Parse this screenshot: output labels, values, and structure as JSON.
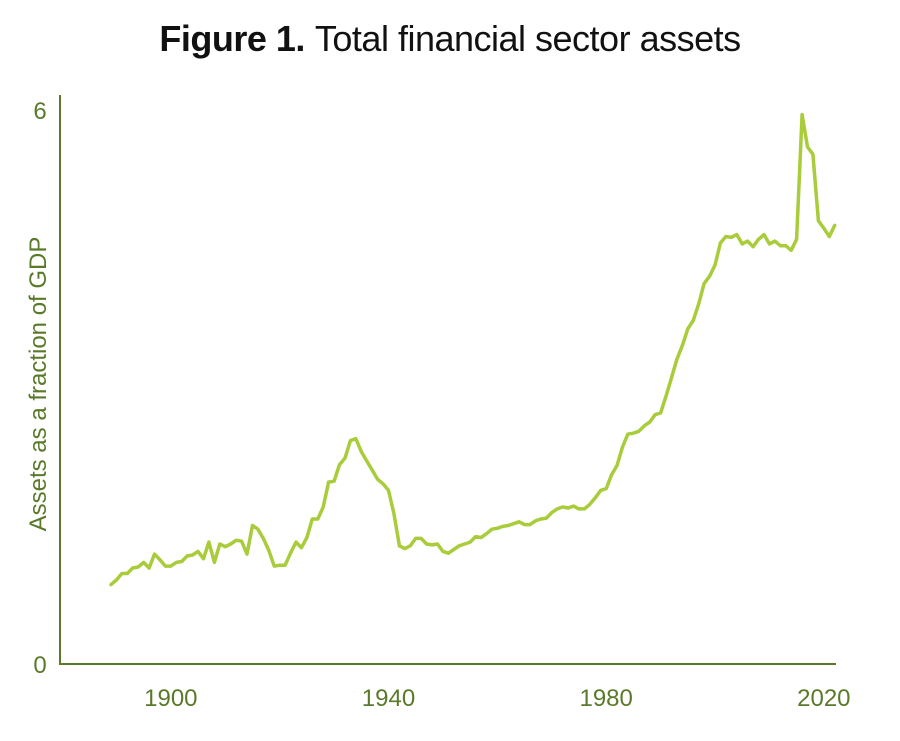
{
  "title": {
    "prefix": "Figure 1.",
    "text": "Total financial sector assets"
  },
  "colors": {
    "axis": "#5a7a2a",
    "text": "#5a7a2a",
    "line": "#a8cc3a",
    "title": "#111111"
  },
  "chart_data": {
    "type": "line",
    "title": "Total financial sector assets",
    "xlabel": "",
    "ylabel": "Assets as a fraction of GDP",
    "xlim": [
      1880,
      2030
    ],
    "ylim": [
      0,
      6
    ],
    "xticks": [
      1900,
      1940,
      1980,
      2020
    ],
    "yticks": [
      0,
      6
    ],
    "grid": false,
    "series": [
      {
        "name": "",
        "x": [
          1889,
          1890,
          1891,
          1892,
          1893,
          1894,
          1895,
          1896,
          1897,
          1898,
          1899,
          1900,
          1901,
          1902,
          1903,
          1904,
          1905,
          1906,
          1907,
          1908,
          1909,
          1910,
          1911,
          1912,
          1913,
          1914,
          1915,
          1916,
          1917,
          1918,
          1919,
          1920,
          1921,
          1922,
          1923,
          1924,
          1925,
          1926,
          1927,
          1928,
          1929,
          1930,
          1931,
          1932,
          1933,
          1934,
          1935,
          1936,
          1937,
          1938,
          1939,
          1940,
          1941,
          1942,
          1943,
          1944,
          1945,
          1946,
          1947,
          1948,
          1949,
          1950,
          1951,
          1952,
          1953,
          1954,
          1955,
          1956,
          1957,
          1958,
          1959,
          1960,
          1961,
          1962,
          1963,
          1964,
          1965,
          1966,
          1967,
          1968,
          1969,
          1970,
          1971,
          1972,
          1973,
          1974,
          1975,
          1976,
          1977,
          1978,
          1979,
          1980,
          1981,
          1982,
          1983,
          1984,
          1985,
          1986,
          1987,
          1988,
          1989,
          1990,
          1991,
          1992,
          1993,
          1994,
          1995,
          1996,
          1997,
          1998,
          1999,
          2000,
          2001,
          2002,
          2003,
          2004,
          2005,
          2006,
          2007,
          2008,
          2009,
          2010,
          2011,
          2012,
          2013,
          2014,
          2015,
          2016,
          2017,
          2018,
          2019,
          2020,
          2021,
          2022
        ],
        "y": [
          0.86,
          0.91,
          0.98,
          0.98,
          1.04,
          1.05,
          1.1,
          1.04,
          1.19,
          1.13,
          1.06,
          1.06,
          1.1,
          1.11,
          1.17,
          1.18,
          1.22,
          1.14,
          1.32,
          1.1,
          1.3,
          1.27,
          1.3,
          1.34,
          1.33,
          1.19,
          1.5,
          1.46,
          1.36,
          1.23,
          1.06,
          1.07,
          1.07,
          1.2,
          1.32,
          1.26,
          1.37,
          1.57,
          1.57,
          1.7,
          1.97,
          1.98,
          2.16,
          2.23,
          2.42,
          2.44,
          2.3,
          2.2,
          2.1,
          2.0,
          1.95,
          1.88,
          1.63,
          1.28,
          1.25,
          1.28,
          1.36,
          1.36,
          1.3,
          1.29,
          1.3,
          1.22,
          1.2,
          1.24,
          1.28,
          1.3,
          1.32,
          1.38,
          1.37,
          1.41,
          1.46,
          1.47,
          1.49,
          1.5,
          1.52,
          1.54,
          1.51,
          1.51,
          1.55,
          1.57,
          1.58,
          1.64,
          1.68,
          1.7,
          1.69,
          1.71,
          1.68,
          1.68,
          1.73,
          1.8,
          1.88,
          1.9,
          2.05,
          2.15,
          2.35,
          2.49,
          2.5,
          2.52,
          2.58,
          2.62,
          2.7,
          2.72,
          2.9,
          3.1,
          3.3,
          3.45,
          3.63,
          3.72,
          3.9,
          4.12,
          4.2,
          4.32,
          4.56,
          4.63,
          4.62,
          4.65,
          4.55,
          4.58,
          4.52,
          4.6,
          4.65,
          4.55,
          4.58,
          4.53,
          4.53,
          4.48,
          4.6,
          5.95,
          5.6,
          5.52,
          4.8,
          4.72,
          4.63,
          4.75
        ]
      }
    ]
  }
}
